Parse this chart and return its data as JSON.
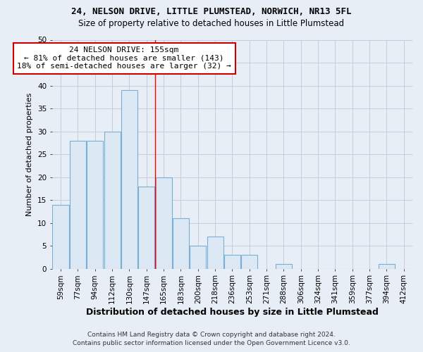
{
  "title": "24, NELSON DRIVE, LITTLE PLUMSTEAD, NORWICH, NR13 5FL",
  "subtitle": "Size of property relative to detached houses in Little Plumstead",
  "xlabel": "Distribution of detached houses by size in Little Plumstead",
  "ylabel": "Number of detached properties",
  "categories": [
    "59sqm",
    "77sqm",
    "94sqm",
    "112sqm",
    "130sqm",
    "147sqm",
    "165sqm",
    "183sqm",
    "200sqm",
    "218sqm",
    "236sqm",
    "253sqm",
    "271sqm",
    "288sqm",
    "306sqm",
    "324sqm",
    "341sqm",
    "359sqm",
    "377sqm",
    "394sqm",
    "412sqm"
  ],
  "values": [
    14,
    28,
    28,
    30,
    39,
    18,
    20,
    11,
    5,
    7,
    3,
    3,
    0,
    1,
    0,
    0,
    0,
    0,
    0,
    1,
    0
  ],
  "bar_color": "#dce9f5",
  "bar_edge_color": "#7aafd4",
  "grid_color": "#c0c8d8",
  "background_color": "#e8eef5",
  "ylim": [
    0,
    50
  ],
  "yticks": [
    0,
    5,
    10,
    15,
    20,
    25,
    30,
    35,
    40,
    45,
    50
  ],
  "property_line_x": 5.5,
  "annotation_line1": "24 NELSON DRIVE: 155sqm",
  "annotation_line2": "← 81% of detached houses are smaller (143)",
  "annotation_line3": "18% of semi-detached houses are larger (32) →",
  "annotation_box_color": "#ffffff",
  "annotation_box_edge_color": "#cc0000",
  "footer_line1": "Contains HM Land Registry data © Crown copyright and database right 2024.",
  "footer_line2": "Contains public sector information licensed under the Open Government Licence v3.0.",
  "title_fontsize": 9,
  "subtitle_fontsize": 8.5,
  "xlabel_fontsize": 9,
  "ylabel_fontsize": 8,
  "tick_fontsize": 7.5,
  "annotation_fontsize": 8,
  "footer_fontsize": 6.5
}
